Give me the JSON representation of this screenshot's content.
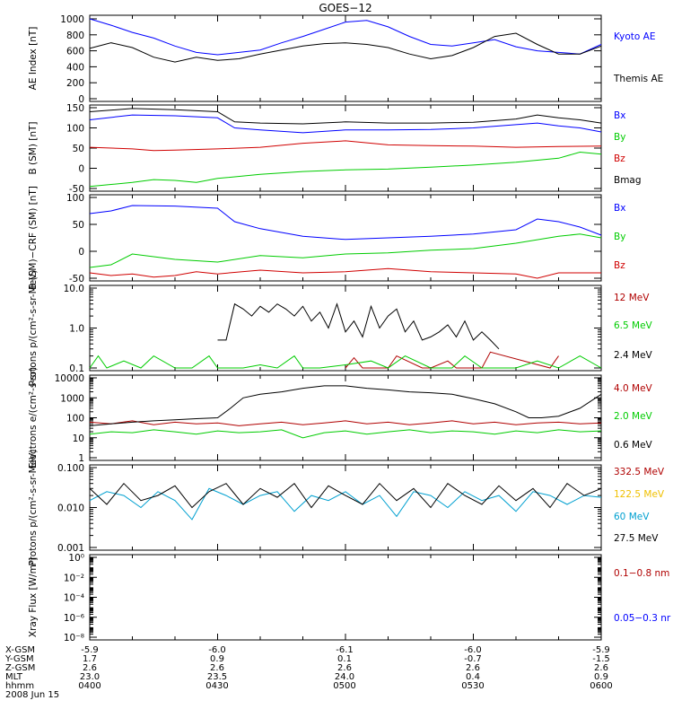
{
  "title": "GOES−12",
  "colors": {
    "black": "#000000",
    "blue": "#0000ff",
    "red": "#d00000",
    "green": "#00cc00",
    "darkred": "#b00000",
    "gold": "#f0c000",
    "cyan": "#00a0d0"
  },
  "orbit": {
    "labels": [
      "X-GSM",
      "Y-GSM",
      "Z-GSM",
      "MLT",
      "hhmm"
    ],
    "date": "2008 Jun 15",
    "columns": [
      [
        "-5.9",
        "1.7",
        "2.6",
        "23.0",
        "0400"
      ],
      [
        "-6.0",
        "0.9",
        "2.6",
        "23.5",
        "0430"
      ],
      [
        "-6.1",
        "0.1",
        "2.6",
        "24.0",
        "0500"
      ],
      [
        "-6.0",
        "-0.7",
        "2.6",
        "0.4",
        "0530"
      ],
      [
        "-5.9",
        "-1.5",
        "2.6",
        "0.9",
        "0600"
      ]
    ]
  },
  "chart_data": [
    {
      "type": "line",
      "ylabel": "AE Index [nT]",
      "ylim": [
        0,
        1000
      ],
      "yticks": [
        "0",
        "200",
        "400",
        "600",
        "800",
        "1000"
      ],
      "xlim": [
        0,
        120
      ],
      "series": [
        {
          "name": "Kyoto AE",
          "color": "#0000ff",
          "x": [
            0,
            5,
            10,
            15,
            20,
            25,
            30,
            35,
            40,
            45,
            50,
            55,
            60,
            65,
            70,
            75,
            80,
            85,
            90,
            95,
            100,
            105,
            110,
            115,
            120
          ],
          "y": [
            1000,
            920,
            830,
            760,
            660,
            580,
            550,
            580,
            610,
            700,
            780,
            870,
            960,
            980,
            900,
            780,
            680,
            660,
            700,
            740,
            650,
            600,
            580,
            560,
            680
          ]
        },
        {
          "name": "Themis AE",
          "color": "#000000",
          "x": [
            0,
            5,
            10,
            15,
            20,
            25,
            30,
            35,
            40,
            45,
            50,
            55,
            60,
            65,
            70,
            75,
            80,
            85,
            90,
            95,
            100,
            105,
            110,
            115,
            120
          ],
          "y": [
            630,
            700,
            640,
            520,
            460,
            520,
            480,
            500,
            560,
            610,
            660,
            690,
            700,
            680,
            640,
            560,
            500,
            540,
            640,
            780,
            820,
            680,
            560,
            560,
            660
          ]
        }
      ],
      "legend": [
        "Kyoto AE",
        "Themis AE"
      ]
    },
    {
      "type": "line",
      "ylabel": "B (SM) [nT]",
      "ylim": [
        -50,
        150
      ],
      "yticks": [
        "-50",
        "0",
        "50",
        "100",
        "150"
      ],
      "xlim": [
        0,
        120
      ],
      "series": [
        {
          "name": "Bx",
          "color": "#0000ff",
          "x": [
            0,
            10,
            20,
            30,
            34,
            40,
            50,
            60,
            70,
            80,
            90,
            100,
            105,
            110,
            115,
            120
          ],
          "y": [
            120,
            132,
            130,
            125,
            100,
            95,
            88,
            95,
            95,
            96,
            100,
            108,
            112,
            105,
            100,
            90
          ]
        },
        {
          "name": "By",
          "color": "#00cc00",
          "x": [
            0,
            5,
            10,
            15,
            20,
            25,
            30,
            40,
            50,
            60,
            70,
            80,
            90,
            100,
            110,
            115,
            120
          ],
          "y": [
            -45,
            -40,
            -35,
            -28,
            -30,
            -35,
            -25,
            -15,
            -8,
            -4,
            -2,
            3,
            8,
            15,
            25,
            40,
            35
          ]
        },
        {
          "name": "Bz",
          "color": "#d00000",
          "x": [
            0,
            10,
            15,
            20,
            30,
            40,
            50,
            60,
            70,
            80,
            90,
            100,
            110,
            120
          ],
          "y": [
            52,
            48,
            44,
            45,
            48,
            52,
            62,
            68,
            58,
            56,
            55,
            52,
            54,
            55
          ]
        },
        {
          "name": "Bmag",
          "color": "#000000",
          "x": [
            0,
            10,
            20,
            30,
            34,
            40,
            50,
            60,
            70,
            80,
            90,
            100,
            105,
            110,
            115,
            120
          ],
          "y": [
            140,
            148,
            145,
            140,
            115,
            112,
            110,
            115,
            112,
            112,
            114,
            122,
            132,
            125,
            120,
            112
          ]
        }
      ],
      "legend": [
        "Bx",
        "By",
        "Bz",
        "Bmag"
      ]
    },
    {
      "type": "line",
      "ylabel": "B (SM)−CRF (SM) [nT]",
      "ylim": [
        -50,
        100
      ],
      "yticks": [
        "-50",
        "0",
        "50",
        "100"
      ],
      "xlim": [
        0,
        120
      ],
      "series": [
        {
          "name": "Bx",
          "color": "#0000ff",
          "x": [
            0,
            5,
            10,
            20,
            30,
            34,
            40,
            50,
            60,
            70,
            80,
            90,
            100,
            105,
            110,
            115,
            120
          ],
          "y": [
            70,
            75,
            85,
            84,
            80,
            55,
            42,
            28,
            22,
            25,
            28,
            32,
            40,
            60,
            55,
            45,
            30
          ]
        },
        {
          "name": "By",
          "color": "#00cc00",
          "x": [
            0,
            5,
            10,
            20,
            30,
            40,
            50,
            60,
            70,
            80,
            90,
            100,
            110,
            115,
            120
          ],
          "y": [
            -30,
            -25,
            -5,
            -15,
            -20,
            -8,
            -12,
            -5,
            -3,
            2,
            5,
            15,
            28,
            32,
            25
          ]
        },
        {
          "name": "Bz",
          "color": "#d00000",
          "x": [
            0,
            5,
            10,
            15,
            20,
            25,
            30,
            40,
            50,
            60,
            70,
            80,
            90,
            100,
            105,
            110,
            120
          ],
          "y": [
            -40,
            -45,
            -42,
            -48,
            -45,
            -38,
            -42,
            -35,
            -40,
            -38,
            -32,
            -38,
            -40,
            -42,
            -50,
            -40,
            -40
          ]
        }
      ],
      "legend": [
        "Bx",
        "By",
        "Bz"
      ]
    },
    {
      "type": "line",
      "ylabel": "Protons p/(cm²-s-sr-MeV)",
      "yscale": "log",
      "ylim": [
        0.1,
        10
      ],
      "yticks": [
        "0.1",
        "1.0",
        "10.0"
      ],
      "xlim": [
        0,
        120
      ],
      "series": [
        {
          "name": "12 MeV",
          "color": "#b00000",
          "x": [
            60,
            62,
            64,
            70,
            72,
            78,
            80,
            84,
            86,
            92,
            94,
            108,
            110
          ],
          "y": [
            0.1,
            0.18,
            0.1,
            0.1,
            0.2,
            0.1,
            0.1,
            0.15,
            0.1,
            0.1,
            0.25,
            0.1,
            0.2
          ]
        },
        {
          "name": "6.5 MeV",
          "color": "#00cc00",
          "x": [
            0,
            2,
            4,
            8,
            12,
            15,
            20,
            24,
            28,
            30,
            36,
            40,
            44,
            48,
            50,
            54,
            60,
            66,
            70,
            74,
            80,
            85,
            88,
            92,
            100,
            105,
            110,
            115,
            120
          ],
          "y": [
            0.1,
            0.2,
            0.1,
            0.15,
            0.1,
            0.2,
            0.1,
            0.1,
            0.2,
            0.1,
            0.1,
            0.12,
            0.1,
            0.2,
            0.1,
            0.1,
            0.12,
            0.15,
            0.1,
            0.2,
            0.1,
            0.1,
            0.2,
            0.1,
            0.1,
            0.15,
            0.1,
            0.2,
            0.1
          ]
        },
        {
          "name": "2.4 MeV",
          "color": "#000000",
          "x": [
            30,
            32,
            34,
            36,
            38,
            40,
            42,
            44,
            46,
            48,
            50,
            52,
            54,
            56,
            58,
            60,
            62,
            64,
            66,
            68,
            70,
            72,
            74,
            76,
            78,
            80,
            82,
            84,
            86,
            88,
            90,
            92,
            94,
            96
          ],
          "y": [
            0.5,
            0.5,
            4.0,
            3.0,
            2.0,
            3.5,
            2.5,
            4.0,
            3.0,
            2.0,
            3.5,
            1.5,
            2.5,
            1.0,
            4.0,
            0.8,
            1.5,
            0.6,
            3.5,
            1.0,
            2.0,
            3.0,
            0.8,
            1.5,
            0.5,
            0.6,
            0.8,
            1.2,
            0.6,
            1.5,
            0.5,
            0.8,
            0.5,
            0.3
          ]
        }
      ],
      "legend": [
        "12 MeV",
        "6.5 MeV",
        "2.4 MeV"
      ]
    },
    {
      "type": "line",
      "ylabel": "Electrons e/(cm²-s-sr)",
      "yscale": "log",
      "ylim": [
        1,
        10000
      ],
      "yticks": [
        "1",
        "10",
        "100",
        "1000",
        "10000"
      ],
      "xlim": [
        0,
        120
      ],
      "series": [
        {
          "name": "4.0 MeV",
          "color": "#b00000",
          "x": [
            0,
            5,
            10,
            15,
            20,
            25,
            30,
            35,
            40,
            45,
            50,
            55,
            60,
            65,
            70,
            75,
            80,
            85,
            90,
            95,
            100,
            105,
            110,
            115,
            120
          ],
          "y": [
            60,
            50,
            70,
            45,
            60,
            50,
            55,
            40,
            50,
            60,
            45,
            55,
            70,
            50,
            60,
            45,
            55,
            70,
            50,
            60,
            45,
            55,
            60,
            50,
            55
          ]
        },
        {
          "name": "2.0 MeV",
          "color": "#00cc00",
          "x": [
            0,
            5,
            10,
            15,
            20,
            25,
            30,
            35,
            40,
            45,
            50,
            55,
            60,
            65,
            70,
            75,
            80,
            85,
            90,
            95,
            100,
            105,
            110,
            115,
            120
          ],
          "y": [
            15,
            20,
            18,
            25,
            20,
            15,
            22,
            18,
            20,
            25,
            10,
            18,
            22,
            15,
            20,
            25,
            18,
            22,
            20,
            15,
            22,
            18,
            25,
            20,
            22
          ]
        },
        {
          "name": "0.6 MeV",
          "color": "#000000",
          "x": [
            0,
            5,
            10,
            15,
            20,
            25,
            30,
            33,
            36,
            40,
            45,
            50,
            55,
            60,
            65,
            70,
            75,
            80,
            85,
            90,
            95,
            100,
            103,
            106,
            110,
            115,
            120
          ],
          "y": [
            40,
            50,
            60,
            70,
            80,
            90,
            100,
            300,
            1000,
            1500,
            2000,
            3000,
            4000,
            4000,
            3000,
            2500,
            2000,
            1800,
            1500,
            900,
            500,
            200,
            100,
            100,
            120,
            300,
            1500
          ]
        }
      ],
      "legend": [
        "4.0 MeV",
        "2.0 MeV",
        "0.6 MeV"
      ]
    },
    {
      "type": "line",
      "ylabel": "Protons p/(cm²-s-sr-MeV)",
      "yscale": "log",
      "ylim": [
        0.001,
        0.1
      ],
      "yticks": [
        "0.001",
        "0.010",
        "0.100"
      ],
      "xlim": [
        0,
        120
      ],
      "series": [
        {
          "name": "332.5 MeV",
          "color": "#b00000",
          "x": [],
          "y": []
        },
        {
          "name": "122.5 MeV",
          "color": "#f0c000",
          "x": [],
          "y": []
        },
        {
          "name": "60 MeV",
          "color": "#00a0d0",
          "x": [
            0,
            4,
            8,
            12,
            16,
            20,
            24,
            28,
            32,
            36,
            40,
            44,
            48,
            52,
            56,
            60,
            64,
            68,
            72,
            76,
            80,
            84,
            88,
            92,
            96,
            100,
            104,
            108,
            112,
            116,
            120
          ],
          "y": [
            0.015,
            0.025,
            0.02,
            0.01,
            0.025,
            0.015,
            0.005,
            0.03,
            0.02,
            0.012,
            0.02,
            0.025,
            0.008,
            0.02,
            0.015,
            0.025,
            0.012,
            0.02,
            0.006,
            0.025,
            0.02,
            0.01,
            0.025,
            0.015,
            0.02,
            0.008,
            0.025,
            0.02,
            0.012,
            0.02,
            0.018
          ]
        },
        {
          "name": "27.5 MeV",
          "color": "#000000",
          "x": [
            0,
            4,
            8,
            12,
            16,
            20,
            24,
            28,
            32,
            36,
            40,
            44,
            48,
            52,
            56,
            60,
            64,
            68,
            72,
            76,
            80,
            84,
            88,
            92,
            96,
            100,
            104,
            108,
            112,
            116,
            120
          ],
          "y": [
            0.03,
            0.012,
            0.04,
            0.015,
            0.02,
            0.035,
            0.01,
            0.025,
            0.04,
            0.012,
            0.03,
            0.018,
            0.04,
            0.01,
            0.035,
            0.02,
            0.012,
            0.04,
            0.015,
            0.03,
            0.01,
            0.04,
            0.02,
            0.012,
            0.035,
            0.015,
            0.03,
            0.01,
            0.04,
            0.02,
            0.03
          ]
        }
      ],
      "legend": [
        "332.5 MeV",
        "122.5 MeV",
        "60 MeV",
        "27.5 MeV"
      ]
    },
    {
      "type": "line",
      "ylabel": "Xray Flux [W/m²]",
      "yscale": "log",
      "ylim": [
        1e-08,
        1
      ],
      "yticks": [
        "10⁻⁸",
        "10⁻⁶",
        "10⁻⁴",
        "10⁻²",
        "10⁰"
      ],
      "xlim": [
        0,
        120
      ],
      "series": [
        {
          "name": "0.1−0.8 nm",
          "color": "#b00000",
          "x": [],
          "y": []
        },
        {
          "name": "0.05−0.3 nr",
          "color": "#0000ff",
          "x": [],
          "y": []
        }
      ],
      "legend": [
        "0.1−0.8 nm",
        "0.05−0.3 nr"
      ]
    }
  ]
}
